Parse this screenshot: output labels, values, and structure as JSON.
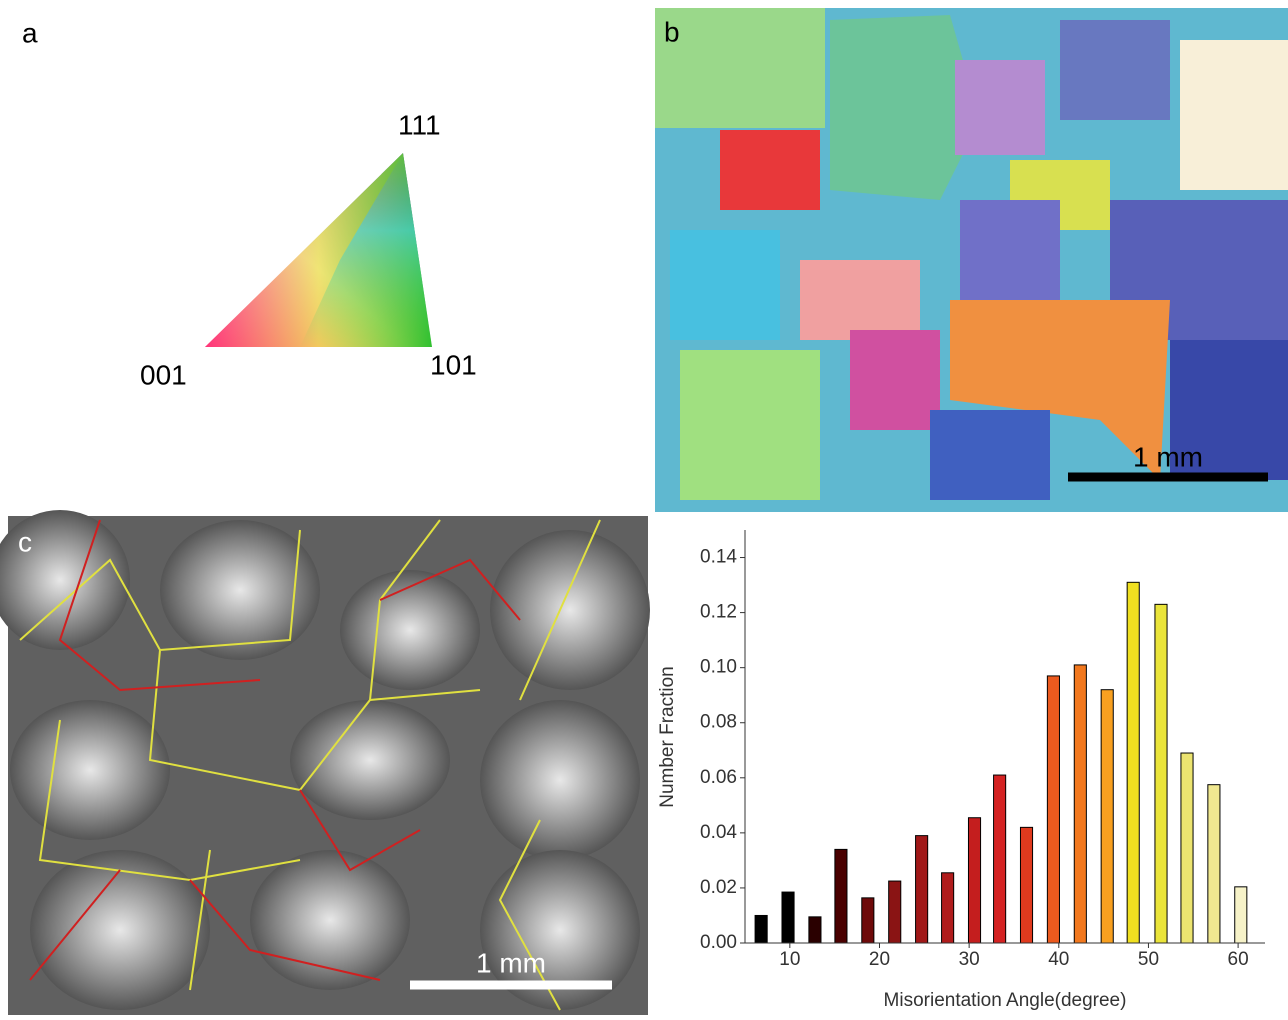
{
  "panels": {
    "a": {
      "label": "a",
      "vertices": [
        "111",
        "001",
        "101"
      ]
    },
    "b": {
      "label": "b",
      "scale_bar": "1 mm"
    },
    "c": {
      "label": "c",
      "scale_bar": "1 mm"
    }
  },
  "chart_data": {
    "type": "bar",
    "x_label": "Misorientation Angle(degree)",
    "y_label": "Number Fraction",
    "x": [
      6.8,
      9.8,
      12.8,
      15.7,
      18.7,
      21.7,
      24.7,
      27.6,
      30.6,
      33.4,
      36.4,
      39.4,
      42.4,
      45.4,
      48.3,
      51.4,
      54.3,
      57.3,
      60.3
    ],
    "values": [
      0.01,
      0.0185,
      0.0095,
      0.034,
      0.0164,
      0.0225,
      0.039,
      0.0255,
      0.0455,
      0.061,
      0.042,
      0.097,
      0.101,
      0.092,
      0.131,
      0.123,
      0.069,
      0.0575,
      0.0204
    ],
    "colors": [
      "#000000",
      "#000000",
      "#2a0000",
      "#4a0000",
      "#6e0a0a",
      "#8a1414",
      "#a01818",
      "#b01c1c",
      "#c41e1e",
      "#d42222",
      "#e03a1e",
      "#ec5a1e",
      "#f2781e",
      "#f8a020",
      "#f0e020",
      "#eae43a",
      "#ece470",
      "#f0e890",
      "#f6f2c8"
    ],
    "xlim": [
      5,
      63
    ],
    "xticks": [
      10,
      20,
      30,
      40,
      50,
      60
    ],
    "ylim": [
      0,
      0.15
    ],
    "yticks": [
      {
        "value": 0,
        "label": "0.00"
      },
      0.02,
      0.04,
      0.06,
      0.08,
      {
        "value": 0.1,
        "label": "0.10"
      },
      0.12,
      0.14
    ],
    "grid": false
  }
}
